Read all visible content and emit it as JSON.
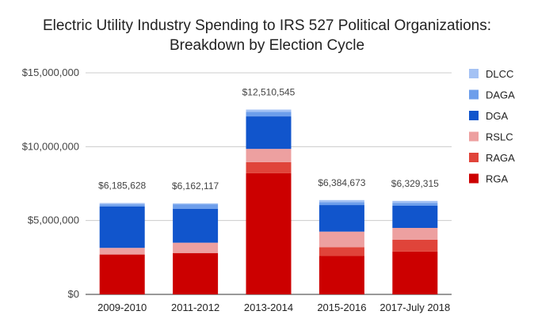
{
  "chart_data": {
    "type": "bar",
    "stacked": true,
    "title_line1": "Electric Utility Industry Spending to IRS 527 Political Organizations:",
    "title_line2": "Breakdown by Election Cycle",
    "xlabel": "",
    "ylabel": "",
    "ylim": [
      0,
      15000000
    ],
    "yticks": [
      {
        "value": 0,
        "label": "$0"
      },
      {
        "value": 5000000,
        "label": "$5,000,000"
      },
      {
        "value": 10000000,
        "label": "$10,000,000"
      },
      {
        "value": 15000000,
        "label": "$15,000,000"
      }
    ],
    "grid": true,
    "legend_position": "right",
    "categories": [
      "2009-2010",
      "2011-2012",
      "2013-2014",
      "2015-2016",
      "2017-July 2018"
    ],
    "totals": [
      "$6,185,628",
      "$6,162,117",
      "$12,510,545",
      "$6,384,673",
      "$6,329,315"
    ],
    "series": [
      {
        "name": "RGA",
        "color": "#cc0000",
        "values": [
          2700000,
          2800000,
          8200000,
          2600000,
          2900000
        ]
      },
      {
        "name": "RAGA",
        "color": "#e0443a",
        "values": [
          0,
          0,
          750000,
          600000,
          800000
        ]
      },
      {
        "name": "RSLC",
        "color": "#eda0a0",
        "values": [
          450000,
          700000,
          900000,
          1050000,
          800000
        ]
      },
      {
        "name": "DGA",
        "color": "#1155cc",
        "values": [
          2800000,
          2300000,
          2200000,
          1800000,
          1500000
        ]
      },
      {
        "name": "DAGA",
        "color": "#6d9eeb",
        "values": [
          150000,
          300000,
          300000,
          200000,
          200000
        ]
      },
      {
        "name": "DLCC",
        "color": "#a4c2f4",
        "values": [
          85628,
          62117,
          160545,
          134673,
          129315
        ]
      }
    ]
  }
}
